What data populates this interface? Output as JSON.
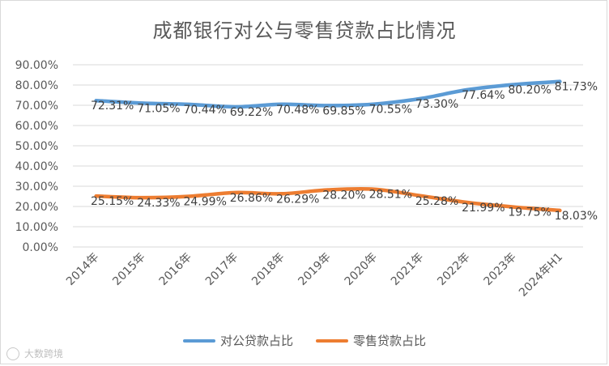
{
  "chart_data": {
    "type": "line",
    "title": "成都银行对公与零售贷款占比情况",
    "categories": [
      "2014年",
      "2015年",
      "2016年",
      "2017年",
      "2018年",
      "2019年",
      "2020年",
      "2021年",
      "2022年",
      "2023年",
      "2024年H1"
    ],
    "yticks": [
      "0.00%",
      "10.00%",
      "20.00%",
      "30.00%",
      "40.00%",
      "50.00%",
      "60.00%",
      "70.00%",
      "80.00%",
      "90.00%"
    ],
    "ylim": [
      0,
      90
    ],
    "grid": true,
    "legend_position": "bottom",
    "series": [
      {
        "name": "对公贷款占比",
        "color": "#5b9bd5",
        "values": [
          72.31,
          71.05,
          70.44,
          69.22,
          70.48,
          69.85,
          70.55,
          73.3,
          77.64,
          80.2,
          81.73
        ],
        "labels": [
          "72.31%",
          "71.05%",
          "70.44%",
          "69.22%",
          "70.48%",
          "69.85%",
          "70.55%",
          "73.30%",
          "77.64%",
          "80.20%",
          "81.73%"
        ]
      },
      {
        "name": "零售贷款占比",
        "color": "#ed7d31",
        "values": [
          25.15,
          24.33,
          24.99,
          26.86,
          26.29,
          28.2,
          28.51,
          25.28,
          21.99,
          19.75,
          18.03
        ],
        "labels": [
          "25.15%",
          "24.33%",
          "24.99%",
          "26.86%",
          "26.29%",
          "28.20%",
          "28.51%",
          "25.28%",
          "21.99%",
          "19.75%",
          "18.03%"
        ]
      }
    ]
  },
  "watermark": "大数跨境"
}
